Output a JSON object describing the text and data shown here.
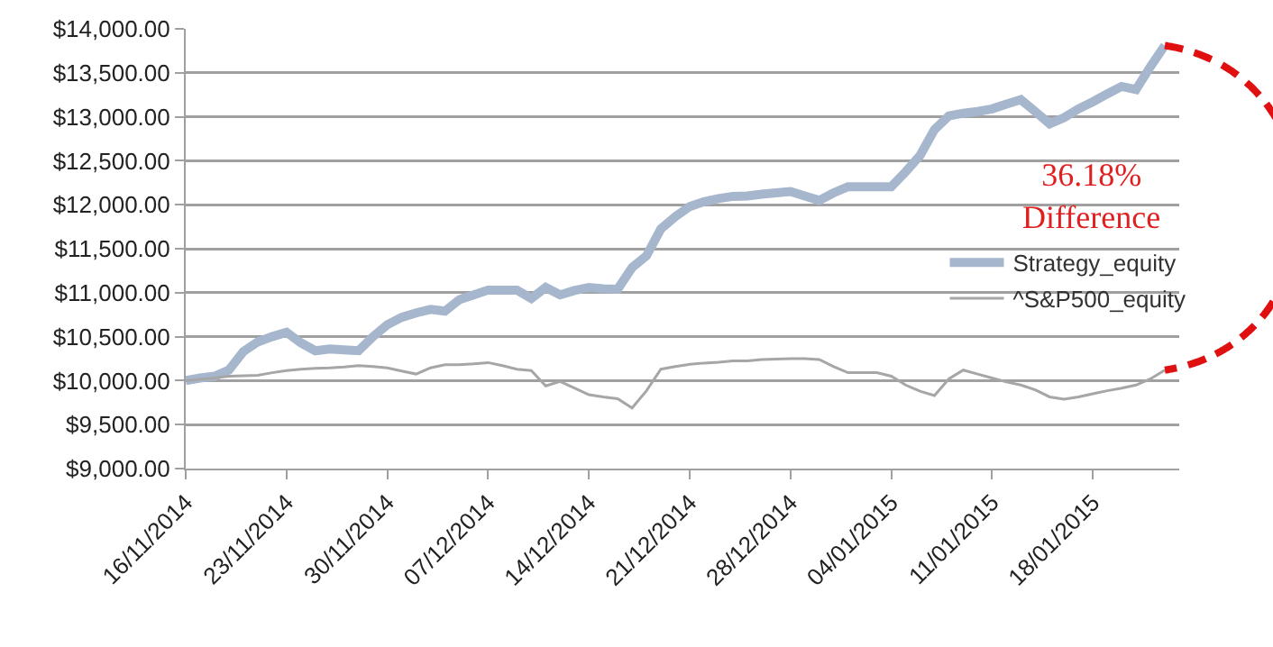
{
  "chart_data": {
    "type": "line",
    "x": [
      "2014-11-16",
      "2014-11-17",
      "2014-11-18",
      "2014-11-19",
      "2014-11-20",
      "2014-11-21",
      "2014-11-22",
      "2014-11-23",
      "2014-11-24",
      "2014-11-25",
      "2014-11-26",
      "2014-11-27",
      "2014-11-28",
      "2014-11-29",
      "2014-11-30",
      "2014-12-01",
      "2014-12-02",
      "2014-12-03",
      "2014-12-04",
      "2014-12-05",
      "2014-12-06",
      "2014-12-07",
      "2014-12-08",
      "2014-12-09",
      "2014-12-10",
      "2014-12-11",
      "2014-12-12",
      "2014-12-13",
      "2014-12-14",
      "2014-12-15",
      "2014-12-16",
      "2014-12-17",
      "2014-12-18",
      "2014-12-19",
      "2014-12-20",
      "2014-12-21",
      "2014-12-22",
      "2014-12-23",
      "2014-12-24",
      "2014-12-25",
      "2014-12-26",
      "2014-12-27",
      "2014-12-28",
      "2014-12-29",
      "2014-12-30",
      "2014-12-31",
      "2015-01-01",
      "2015-01-02",
      "2015-01-03",
      "2015-01-04",
      "2015-01-05",
      "2015-01-06",
      "2015-01-07",
      "2015-01-08",
      "2015-01-09",
      "2015-01-10",
      "2015-01-11",
      "2015-01-12",
      "2015-01-13",
      "2015-01-14",
      "2015-01-15",
      "2015-01-16",
      "2015-01-17",
      "2015-01-18",
      "2015-01-19",
      "2015-01-20",
      "2015-01-21",
      "2015-01-22",
      "2015-01-23"
    ],
    "series": [
      {
        "name": "Strategy_equity",
        "color": "#a5b6cd",
        "values": [
          10000,
          10030,
          10050,
          10120,
          10330,
          10440,
          10500,
          10550,
          10430,
          10340,
          10360,
          10350,
          10340,
          10500,
          10635,
          10720,
          10770,
          10810,
          10790,
          10920,
          10975,
          11030,
          11030,
          11030,
          10935,
          11060,
          10975,
          11025,
          11060,
          11045,
          11040,
          11285,
          11420,
          11725,
          11865,
          11980,
          12035,
          12070,
          12095,
          12100,
          12120,
          12135,
          12150,
          12100,
          12050,
          12135,
          12205,
          12205,
          12205,
          12205,
          12375,
          12560,
          12855,
          13010,
          13040,
          13060,
          13090,
          13145,
          13195,
          13060,
          12920,
          12990,
          13090,
          13170,
          13260,
          13345,
          13310,
          13570,
          13810
        ]
      },
      {
        "name": "^S&P500_equity",
        "color": "#a6a6a6",
        "values": [
          10000,
          10015,
          10030,
          10050,
          10055,
          10060,
          10090,
          10115,
          10130,
          10140,
          10145,
          10155,
          10170,
          10160,
          10145,
          10110,
          10075,
          10145,
          10180,
          10180,
          10190,
          10205,
          10170,
          10130,
          10115,
          9940,
          9990,
          9915,
          9840,
          9815,
          9795,
          9690,
          9885,
          10130,
          10160,
          10185,
          10200,
          10210,
          10225,
          10225,
          10240,
          10245,
          10250,
          10250,
          10240,
          10160,
          10090,
          10090,
          10090,
          10050,
          9950,
          9880,
          9830,
          10020,
          10120,
          10075,
          10030,
          9985,
          9950,
          9895,
          9815,
          9790,
          9815,
          9850,
          9885,
          9915,
          9950,
          10020,
          10120
        ]
      }
    ],
    "xlim": [
      "2014-11-16",
      "2015-01-24"
    ],
    "xticks": [
      {
        "value": "2014-11-16",
        "label": "16/11/2014"
      },
      {
        "value": "2014-11-23",
        "label": "23/11/2014"
      },
      {
        "value": "2014-11-30",
        "label": "30/11/2014"
      },
      {
        "value": "2014-12-07",
        "label": "07/12/2014"
      },
      {
        "value": "2014-12-14",
        "label": "14/12/2014"
      },
      {
        "value": "2014-12-21",
        "label": "21/12/2014"
      },
      {
        "value": "2014-12-28",
        "label": "28/12/2014"
      },
      {
        "value": "2015-01-04",
        "label": "04/01/2015"
      },
      {
        "value": "2015-01-11",
        "label": "11/01/2015"
      },
      {
        "value": "2015-01-18",
        "label": "18/01/2015"
      }
    ],
    "ylim": [
      9000,
      14000
    ],
    "yticks": [
      {
        "value": 9000,
        "label": "$9,000.00"
      },
      {
        "value": 9500,
        "label": "$9,500.00"
      },
      {
        "value": 10000,
        "label": "$10,000.00"
      },
      {
        "value": 10500,
        "label": "$10,500.00"
      },
      {
        "value": 11000,
        "label": "$11,000.00"
      },
      {
        "value": 11500,
        "label": "$11,500.00"
      },
      {
        "value": 12000,
        "label": "$12,000.00"
      },
      {
        "value": 12500,
        "label": "$12,500.00"
      },
      {
        "value": 13000,
        "label": "$13,000.00"
      },
      {
        "value": 13500,
        "label": "$13,500.00"
      },
      {
        "value": 14000,
        "label": "$14,000.00"
      }
    ],
    "grid": "y",
    "legend": "right",
    "marker": "none",
    "line_style": "solid",
    "annotations": [
      "36.18%\nDifference"
    ]
  }
}
